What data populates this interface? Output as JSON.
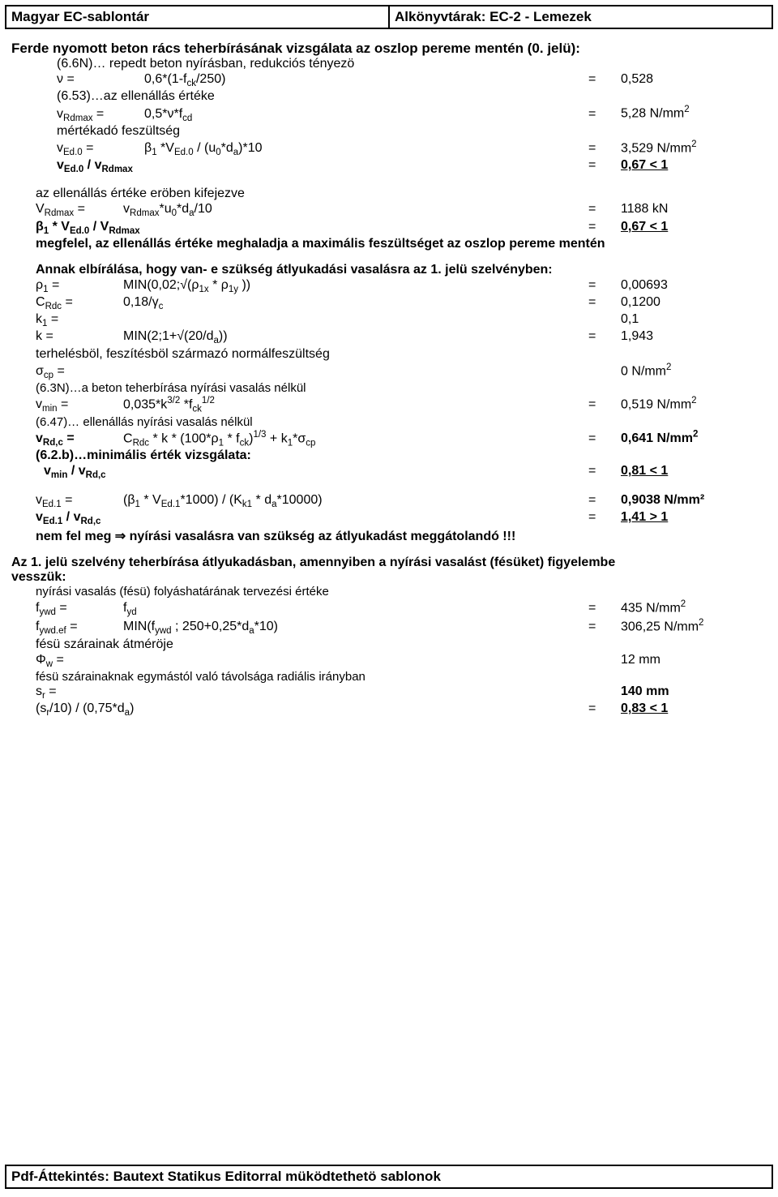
{
  "header": {
    "left": "Magyar EC-sablontár",
    "right": "Alkönyvtárak: EC-2 - Lemezek"
  },
  "title1": "Ferde nyomott beton rács teherbírásának vizsgálata az oszlop pereme mentén (0. jelü):",
  "rows": {
    "r1_note": "(6.6N)… repedt beton nyírásban, redukciós tényezö",
    "r1": {
      "lhs": "ν =",
      "expr": "0,6*(1-f",
      "expr2": "/250)",
      "val": "0,528"
    },
    "r2_note": "(6.53)…az ellenállás értéke",
    "r2": {
      "lhs_html": "v<sub>Rdmax</sub> =",
      "expr_html": "0,5*ν*f<sub>cd</sub>",
      "val_html": "5,28 N/mm<sup>2</sup>"
    },
    "r3_label": "mértékadó feszültség",
    "r3": {
      "lhs_html": "v<sub>Ed.0</sub> =",
      "expr_html": "β<sub>1</sub> *V<sub>Ed.0</sub> / (u<sub>0</sub>*d<sub>a</sub>)*10",
      "val_html": "3,529 N/mm<sup>2</sup>"
    },
    "r4": {
      "lhs_html": "<b>v<sub>Ed.0</sub> / v<sub>Rdmax</sub></b>",
      "val_html": "<b><u>0,67 &lt; 1</u></b>"
    },
    "r5_label": "az ellenállás értéke eröben kifejezve",
    "r5": {
      "lhs_html": "V<sub>Rdmax</sub> =",
      "expr_html": "v<sub>Rdmax</sub>*u<sub>0</sub>*d<sub>a</sub>/10",
      "val": "1188 kN"
    },
    "r6": {
      "lhs_html": "<b>β<sub>1</sub> * V<sub>Ed.0</sub> / V<sub>Rdmax</sub></b>",
      "val_html": "<b><u>0,67 &lt; 1</u></b>"
    },
    "r6_concl": "megfelel, az ellenállás értéke meghaladja a maximális feszültséget az oszlop pereme mentén"
  },
  "title2": "Annak elbírálása, hogy van- e szükség átlyukadási vasalásra az 1. jelü szelvényben:",
  "block2": {
    "b1": {
      "lhs_html": "ρ<sub>1</sub> =",
      "expr_html": "MIN(0,02;√(ρ<sub>1x</sub> * ρ<sub>1y</sub> ))",
      "val": "0,00693"
    },
    "b2": {
      "lhs_html": "C<sub>Rdc</sub> =",
      "expr_html": "0,18/γ<sub>c</sub>",
      "val": "0,1200"
    },
    "b3": {
      "lhs_html": "k<sub>1</sub> =",
      "val": "0,1"
    },
    "b4": {
      "lhs": "k =",
      "expr_html": "MIN(2;1+√(20/d<sub>a</sub>))",
      "val": "1,943"
    },
    "b5_label": "terhelésböl, feszítésböl származó normálfeszültség",
    "b5": {
      "lhs_html": "σ<sub>cp</sub> =",
      "val_html": "0 N/mm<sup>2</sup>"
    },
    "b6_note": "(6.3N)…a beton teherbírása nyírási vasalás nélkül",
    "b6": {
      "lhs_html": "v<sub>min</sub> =",
      "expr_html": "0,035*k<sup>3/2</sup> *f<sub>ck</sub><sup>1/2</sup>",
      "val_html": "0,519 N/mm<sup>2</sup>"
    },
    "b7_note": "(6.47)… ellenállás nyírási vasalás nélkül",
    "b7": {
      "lhs_html": "<b>v<sub>Rd,c</sub> =</b>",
      "expr_html": "C<sub>Rdc</sub> * k * (100*ρ<sub>1</sub> * f<sub>ck</sub>)<sup>1/3</sup> + k<sub>1</sub>*σ<sub>cp</sub>",
      "val_html": "<b>0,641 N/mm<sup>2</sup></b>"
    },
    "b8_note": "(6.2.b)…minimális érték vizsgálata:",
    "b8": {
      "lhs_html": "<b>v<sub>min</sub> / v<sub>Rd,c</sub></b>",
      "val_html": "<b><u>0,81 &lt; 1</u></b>"
    },
    "b9": {
      "lhs_html": "v<sub>Ed.1</sub> =",
      "expr_html": "(β<sub>1</sub> * V<sub>Ed.1</sub>*1000) / (K<sub>k1</sub> * d<sub>a</sub>*10000)",
      "val_html": "<b>0,9038 N/mm²</b>"
    },
    "b10": {
      "lhs_html": "<b>v<sub>Ed.1</sub> / v<sub>Rd,c</sub></b>",
      "val_html": "<b><u>1,41 &gt; 1</u></b>"
    },
    "b10_concl": "nem fel meg ⇒ nyírási vasalásra van szükség az átlyukadást meggátolandó !!!"
  },
  "title3a": "Az 1. jelü szelvény teherbírása átlyukadásban, amennyiben a nyírási vasalást (fésüket) figyelembe",
  "title3b": "vesszük:",
  "block3": {
    "c1_note": "nyírási vasalás (fésü) folyáshatárának tervezési értéke",
    "c1": {
      "lhs_html": "f<sub>ywd</sub> =",
      "expr_html": "f<sub>yd</sub>",
      "val_html": "435 N/mm<sup>2</sup>"
    },
    "c2": {
      "lhs_html": "f<sub>ywd.ef</sub> =",
      "expr_html": "MIN(f<sub>ywd</sub> ; 250+0,25*d<sub>a</sub>*10)",
      "val_html": "306,25 N/mm<sup>2</sup>"
    },
    "c3_label": "fésü szárainak átméröje",
    "c3": {
      "lhs_html": "Φ<sub>w</sub> =",
      "val": "12 mm"
    },
    "c4_label": "fésü szárainaknak egymástól való távolsága radiális irányban",
    "c4": {
      "lhs_html": "s<sub>r</sub> =",
      "val_html": "<b>140 mm</b>"
    },
    "c5": {
      "lhs_html": "(s<sub>r</sub>/10) / (0,75*d<sub>a</sub>)",
      "val_html": "<b><u>0,83 &lt; 1</u></b>"
    }
  },
  "footer": "Pdf-Áttekintés: Bautext Statikus Editorral müködtethetö sablonok"
}
